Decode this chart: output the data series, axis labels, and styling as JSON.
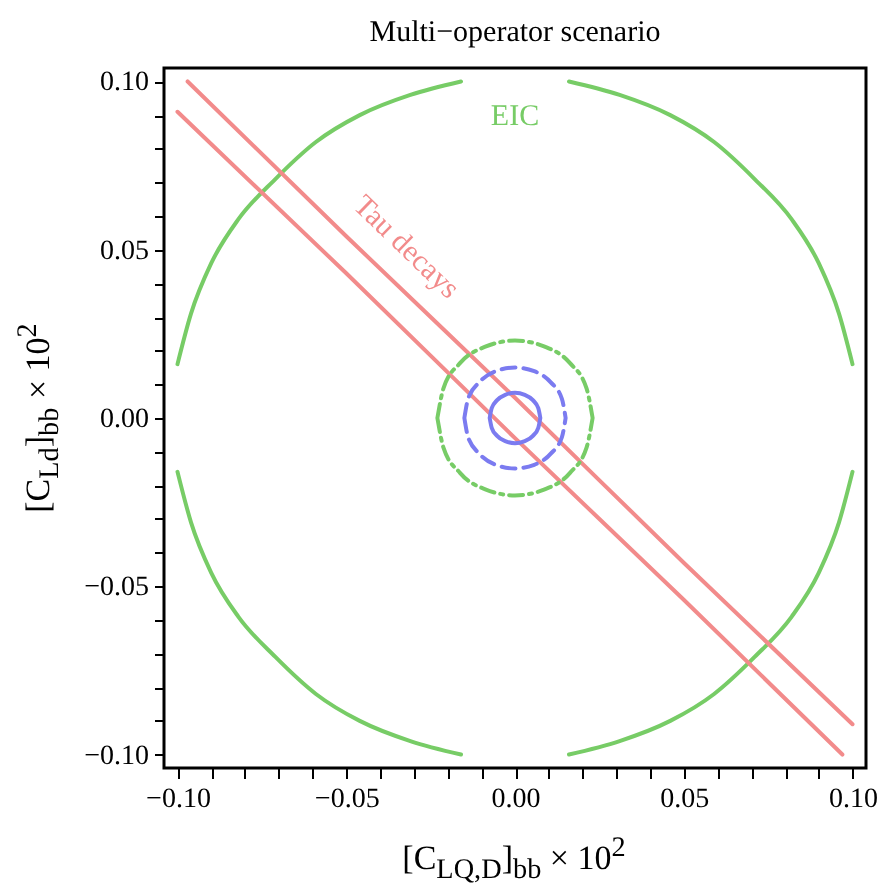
{
  "chart_data": {
    "type": "line",
    "title": "Multi−operator scenario",
    "xlabel": "[C$_{LQ,D}$]$_{bb}$ × 10$^{2}$",
    "ylabel": "[C$_{Ld}$]$_{bb}$ × 10$^{2}$",
    "xlim": [
      -0.104,
      0.104
    ],
    "ylim": [
      -0.104,
      0.104
    ],
    "xticks": [
      {
        "value": -0.1,
        "label": "−0.10"
      },
      {
        "value": -0.09,
        "label": null
      },
      {
        "value": -0.08,
        "label": null
      },
      {
        "value": -0.07,
        "label": null
      },
      {
        "value": -0.06,
        "label": null
      },
      {
        "value": -0.05,
        "label": "−0.05"
      },
      {
        "value": -0.04,
        "label": null
      },
      {
        "value": -0.03,
        "label": null
      },
      {
        "value": -0.02,
        "label": null
      },
      {
        "value": -0.01,
        "label": null
      },
      {
        "value": 0,
        "label": "0.00"
      },
      {
        "value": 0.01,
        "label": null
      },
      {
        "value": 0.02,
        "label": null
      },
      {
        "value": 0.03,
        "label": null
      },
      {
        "value": 0.04,
        "label": null
      },
      {
        "value": 0.05,
        "label": "0.05"
      },
      {
        "value": 0.06,
        "label": null
      },
      {
        "value": 0.07,
        "label": null
      },
      {
        "value": 0.08,
        "label": null
      },
      {
        "value": 0.09,
        "label": null
      },
      {
        "value": 0.1,
        "label": "0.10"
      }
    ],
    "yticks": [
      {
        "value": -0.1,
        "label": "−0.10"
      },
      {
        "value": -0.09,
        "label": null
      },
      {
        "value": -0.08,
        "label": null
      },
      {
        "value": -0.07,
        "label": null
      },
      {
        "value": -0.06,
        "label": null
      },
      {
        "value": -0.05,
        "label": "−0.05"
      },
      {
        "value": -0.04,
        "label": null
      },
      {
        "value": -0.03,
        "label": null
      },
      {
        "value": -0.02,
        "label": null
      },
      {
        "value": -0.01,
        "label": null
      },
      {
        "value": 0,
        "label": "0.00"
      },
      {
        "value": 0.01,
        "label": null
      },
      {
        "value": 0.02,
        "label": null
      },
      {
        "value": 0.03,
        "label": null
      },
      {
        "value": 0.04,
        "label": null
      },
      {
        "value": 0.05,
        "label": "0.05"
      },
      {
        "value": 0.06,
        "label": null
      },
      {
        "value": 0.07,
        "label": null
      },
      {
        "value": 0.08,
        "label": null
      },
      {
        "value": 0.09,
        "label": null
      },
      {
        "value": 0.1,
        "label": "0.10"
      }
    ],
    "grid": false,
    "legend": false,
    "marker": "none",
    "series": [
      {
        "name": "EIC",
        "color": "#77cc66",
        "line_style": "solid",
        "x": [
          0.1,
          0.096,
          0.09,
          0.082,
          0.071,
          0.059,
          0.046,
          0.031,
          0.016,
          null,
          -0.016,
          -0.031,
          -0.046,
          -0.059,
          -0.071,
          -0.082,
          -0.09,
          -0.096,
          -0.1,
          null,
          -0.1,
          -0.096,
          -0.09,
          -0.082,
          -0.071,
          -0.059,
          -0.046,
          -0.031,
          -0.016,
          null,
          0.016,
          0.031,
          0.046,
          0.059,
          0.071,
          0.082,
          0.09,
          0.096,
          0.1
        ],
        "values": [
          0.016,
          0.031,
          0.046,
          0.059,
          0.071,
          0.082,
          0.09,
          0.096,
          0.1,
          null,
          0.1,
          0.096,
          0.09,
          0.082,
          0.071,
          0.059,
          0.046,
          0.031,
          0.016,
          null,
          -0.016,
          -0.031,
          -0.046,
          -0.059,
          -0.071,
          -0.082,
          -0.09,
          -0.096,
          -0.1,
          null,
          -0.1,
          -0.096,
          -0.09,
          -0.082,
          -0.071,
          -0.059,
          -0.046,
          -0.031,
          -0.016
        ]
      },
      {
        "name": "Tau decays",
        "color": "#f28b8b",
        "line_style": "solid",
        "x": [
          -0.097,
          -0.05,
          0,
          0.05,
          0.1
        ],
        "values": [
          0.1,
          0.054,
          0.006,
          -0.043,
          -0.091
        ]
      },
      {
        "color": "#f28b8b",
        "line_style": "solid",
        "x": [
          -0.1,
          -0.05,
          0,
          0.05,
          0.097
        ],
        "values": [
          0.091,
          0.043,
          -0.006,
          -0.054,
          -0.1
        ]
      },
      {
        "color": "#77cc66",
        "line_style": "dashdot",
        "x": [
          -0.023,
          -0.0212,
          -0.0163,
          -0.0088,
          0,
          0.0088,
          0.0163,
          0.0212,
          0.023,
          null,
          -0.023,
          -0.0212,
          -0.0163,
          -0.0088,
          0,
          0.0088,
          0.0163,
          0.0212,
          0.023
        ],
        "values": [
          0,
          0.0088,
          0.0163,
          0.0212,
          0.023,
          0.0212,
          0.0163,
          0.0088,
          0,
          null,
          0,
          -0.0088,
          -0.0163,
          -0.0212,
          -0.023,
          -0.0212,
          -0.0163,
          -0.0088,
          0
        ]
      },
      {
        "color": "#7b7bf0",
        "line_style": "dashed",
        "x": [
          -0.015,
          -0.0139,
          -0.0106,
          -0.0057,
          0,
          0.0057,
          0.0106,
          0.0139,
          0.015,
          null,
          -0.015,
          -0.0139,
          -0.0106,
          -0.0057,
          0,
          0.0057,
          0.0106,
          0.0139,
          0.015
        ],
        "values": [
          0,
          0.0057,
          0.0106,
          0.0139,
          0.015,
          0.0139,
          0.0106,
          0.0057,
          0,
          null,
          0,
          -0.0057,
          -0.0106,
          -0.0139,
          -0.015,
          -0.0139,
          -0.0106,
          -0.0057,
          0
        ]
      },
      {
        "color": "#7b7bf0",
        "line_style": "solid",
        "x": [
          -0.0075,
          -0.0069,
          -0.0053,
          -0.0029,
          0,
          0.0029,
          0.0053,
          0.0069,
          0.0075,
          null,
          -0.0075,
          -0.0069,
          -0.0053,
          -0.0029,
          0,
          0.0029,
          0.0053,
          0.0069,
          0.0075
        ],
        "values": [
          0,
          0.0029,
          0.0053,
          0.0069,
          0.0075,
          0.0069,
          0.0053,
          0.0029,
          0,
          null,
          0,
          -0.0029,
          -0.0053,
          -0.0069,
          -0.0075,
          -0.0069,
          -0.0053,
          -0.0029,
          0
        ]
      }
    ]
  }
}
